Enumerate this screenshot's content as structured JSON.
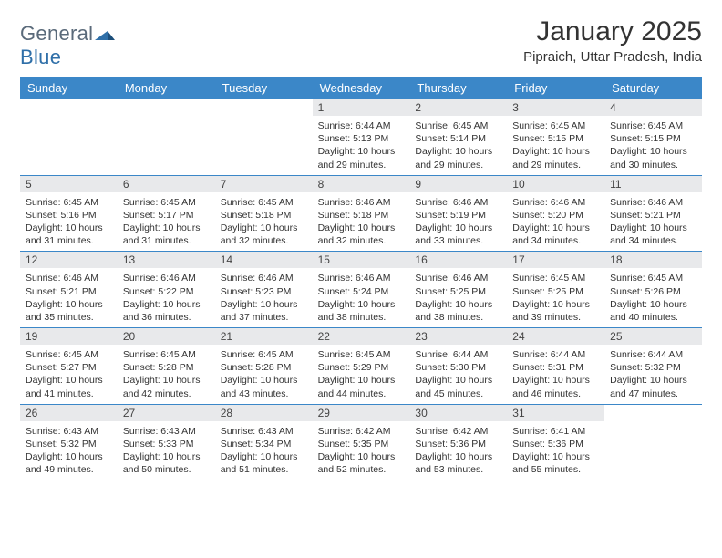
{
  "logo": {
    "text1": "General",
    "text2": "Blue"
  },
  "title": "January 2025",
  "location": "Pipraich, Uttar Pradesh, India",
  "day_names": [
    "Sunday",
    "Monday",
    "Tuesday",
    "Wednesday",
    "Thursday",
    "Friday",
    "Saturday"
  ],
  "labels": {
    "sunrise": "Sunrise:",
    "sunset": "Sunset:",
    "daylight": "Daylight:"
  },
  "colors": {
    "header_bg": "#3b87c8",
    "header_text": "#ffffff",
    "daynum_bg": "#e8e9eb",
    "text": "#333333",
    "logo_gray": "#5a6a7a",
    "logo_blue": "#2f6fa8",
    "rule": "#3b87c8"
  },
  "weeks": [
    [
      {
        "n": "",
        "empty": true
      },
      {
        "n": "",
        "empty": true
      },
      {
        "n": "",
        "empty": true
      },
      {
        "n": "1",
        "sr": "6:44 AM",
        "ss": "5:13 PM",
        "dl": "10 hours and 29 minutes."
      },
      {
        "n": "2",
        "sr": "6:45 AM",
        "ss": "5:14 PM",
        "dl": "10 hours and 29 minutes."
      },
      {
        "n": "3",
        "sr": "6:45 AM",
        "ss": "5:15 PM",
        "dl": "10 hours and 29 minutes."
      },
      {
        "n": "4",
        "sr": "6:45 AM",
        "ss": "5:15 PM",
        "dl": "10 hours and 30 minutes."
      }
    ],
    [
      {
        "n": "5",
        "sr": "6:45 AM",
        "ss": "5:16 PM",
        "dl": "10 hours and 31 minutes."
      },
      {
        "n": "6",
        "sr": "6:45 AM",
        "ss": "5:17 PM",
        "dl": "10 hours and 31 minutes."
      },
      {
        "n": "7",
        "sr": "6:45 AM",
        "ss": "5:18 PM",
        "dl": "10 hours and 32 minutes."
      },
      {
        "n": "8",
        "sr": "6:46 AM",
        "ss": "5:18 PM",
        "dl": "10 hours and 32 minutes."
      },
      {
        "n": "9",
        "sr": "6:46 AM",
        "ss": "5:19 PM",
        "dl": "10 hours and 33 minutes."
      },
      {
        "n": "10",
        "sr": "6:46 AM",
        "ss": "5:20 PM",
        "dl": "10 hours and 34 minutes."
      },
      {
        "n": "11",
        "sr": "6:46 AM",
        "ss": "5:21 PM",
        "dl": "10 hours and 34 minutes."
      }
    ],
    [
      {
        "n": "12",
        "sr": "6:46 AM",
        "ss": "5:21 PM",
        "dl": "10 hours and 35 minutes."
      },
      {
        "n": "13",
        "sr": "6:46 AM",
        "ss": "5:22 PM",
        "dl": "10 hours and 36 minutes."
      },
      {
        "n": "14",
        "sr": "6:46 AM",
        "ss": "5:23 PM",
        "dl": "10 hours and 37 minutes."
      },
      {
        "n": "15",
        "sr": "6:46 AM",
        "ss": "5:24 PM",
        "dl": "10 hours and 38 minutes."
      },
      {
        "n": "16",
        "sr": "6:46 AM",
        "ss": "5:25 PM",
        "dl": "10 hours and 38 minutes."
      },
      {
        "n": "17",
        "sr": "6:45 AM",
        "ss": "5:25 PM",
        "dl": "10 hours and 39 minutes."
      },
      {
        "n": "18",
        "sr": "6:45 AM",
        "ss": "5:26 PM",
        "dl": "10 hours and 40 minutes."
      }
    ],
    [
      {
        "n": "19",
        "sr": "6:45 AM",
        "ss": "5:27 PM",
        "dl": "10 hours and 41 minutes."
      },
      {
        "n": "20",
        "sr": "6:45 AM",
        "ss": "5:28 PM",
        "dl": "10 hours and 42 minutes."
      },
      {
        "n": "21",
        "sr": "6:45 AM",
        "ss": "5:28 PM",
        "dl": "10 hours and 43 minutes."
      },
      {
        "n": "22",
        "sr": "6:45 AM",
        "ss": "5:29 PM",
        "dl": "10 hours and 44 minutes."
      },
      {
        "n": "23",
        "sr": "6:44 AM",
        "ss": "5:30 PM",
        "dl": "10 hours and 45 minutes."
      },
      {
        "n": "24",
        "sr": "6:44 AM",
        "ss": "5:31 PM",
        "dl": "10 hours and 46 minutes."
      },
      {
        "n": "25",
        "sr": "6:44 AM",
        "ss": "5:32 PM",
        "dl": "10 hours and 47 minutes."
      }
    ],
    [
      {
        "n": "26",
        "sr": "6:43 AM",
        "ss": "5:32 PM",
        "dl": "10 hours and 49 minutes."
      },
      {
        "n": "27",
        "sr": "6:43 AM",
        "ss": "5:33 PM",
        "dl": "10 hours and 50 minutes."
      },
      {
        "n": "28",
        "sr": "6:43 AM",
        "ss": "5:34 PM",
        "dl": "10 hours and 51 minutes."
      },
      {
        "n": "29",
        "sr": "6:42 AM",
        "ss": "5:35 PM",
        "dl": "10 hours and 52 minutes."
      },
      {
        "n": "30",
        "sr": "6:42 AM",
        "ss": "5:36 PM",
        "dl": "10 hours and 53 minutes."
      },
      {
        "n": "31",
        "sr": "6:41 AM",
        "ss": "5:36 PM",
        "dl": "10 hours and 55 minutes."
      },
      {
        "n": "",
        "empty": true
      }
    ]
  ]
}
